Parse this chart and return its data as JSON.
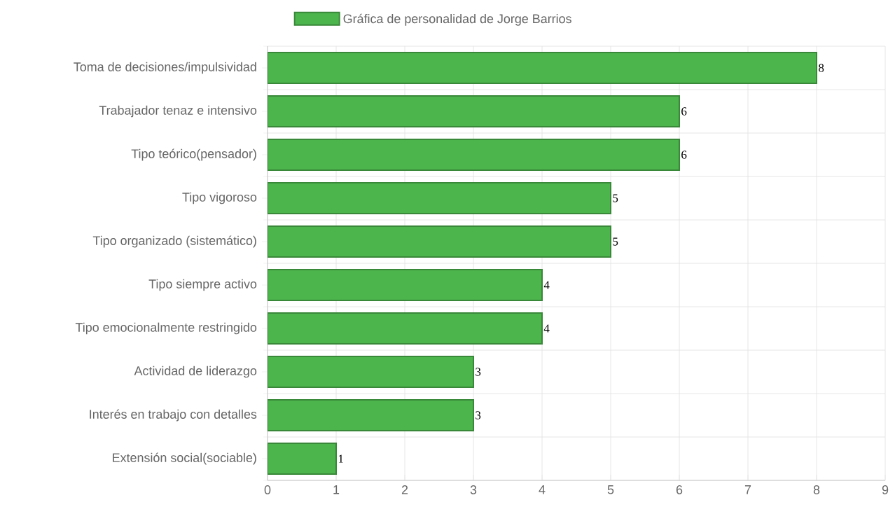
{
  "chart_data": {
    "type": "bar",
    "orientation": "horizontal",
    "categories": [
      "Toma de decisiones/impulsividad",
      "Trabajador tenaz e intensivo",
      "Tipo teórico(pensador)",
      "Tipo vigoroso",
      "Tipo organizado (sistemático)",
      "Tipo siempre activo",
      "Tipo emocionalmente restringido",
      "Actividad de liderazgo",
      "Interés en trabajo con detalles",
      "Extensión social(sociable)"
    ],
    "series": [
      {
        "name": "Gráfica de personalidad de Jorge Barrios",
        "color": "#4cb54c",
        "values": [
          8,
          6,
          6,
          5,
          5,
          4,
          4,
          3,
          3,
          1
        ]
      }
    ],
    "xlim": [
      0,
      9
    ],
    "xticks": [
      0,
      1,
      2,
      3,
      4,
      5,
      6,
      7,
      8,
      9
    ],
    "grid": true,
    "legend": "top",
    "data_labels": true
  }
}
